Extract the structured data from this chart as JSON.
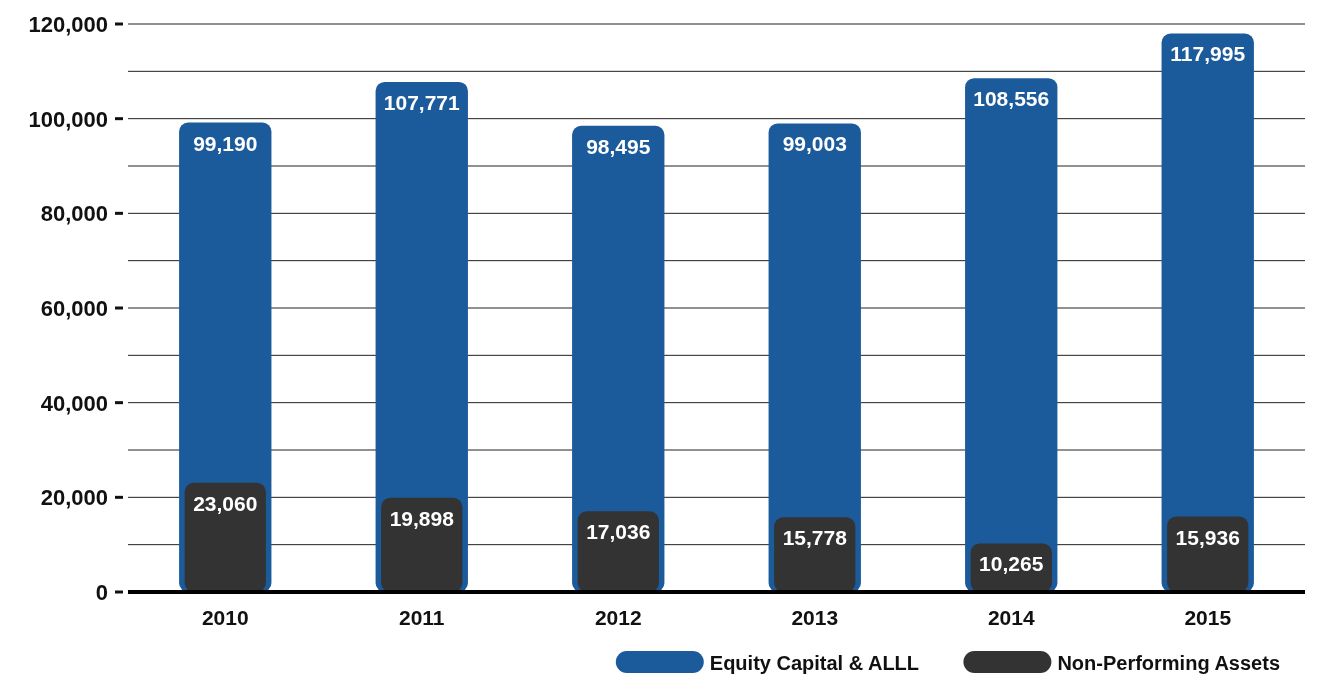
{
  "chart_data": {
    "type": "bar",
    "categories": [
      "2010",
      "2011",
      "2012",
      "2013",
      "2014",
      "2015"
    ],
    "series": [
      {
        "name": "Equity Capital & ALLL",
        "color": "#1c5b9b",
        "values": [
          99190,
          107771,
          98495,
          99003,
          108556,
          117995
        ],
        "value_labels": [
          "99,190",
          "107,771",
          "98,495",
          "99,003",
          "108,556",
          "117,995"
        ]
      },
      {
        "name": "Non-Performing Assets",
        "color": "#333333",
        "values": [
          23060,
          19898,
          17036,
          15778,
          10265,
          15936
        ],
        "value_labels": [
          "23,060",
          "19,898",
          "17,036",
          "15,778",
          "10,265",
          "15,936"
        ]
      }
    ],
    "ylim": [
      0,
      120000
    ],
    "yticks": [
      0,
      {
        "value": 10000,
        "label": null
      },
      {
        "value": 20000,
        "label": "20,000"
      },
      {
        "value": 30000,
        "label": null
      },
      {
        "value": 40000,
        "label": "40,000"
      },
      {
        "value": 50000,
        "label": null
      },
      {
        "value": 60000,
        "label": "60,000"
      },
      {
        "value": 70000,
        "label": null
      },
      {
        "value": 80000,
        "label": "80,000"
      },
      {
        "value": 90000,
        "label": null
      },
      {
        "value": 100000,
        "label": "100,000"
      },
      {
        "value": 110000,
        "label": null
      },
      {
        "value": 120000,
        "label": "120,000"
      }
    ],
    "grid": true,
    "legend": "bottom right"
  }
}
